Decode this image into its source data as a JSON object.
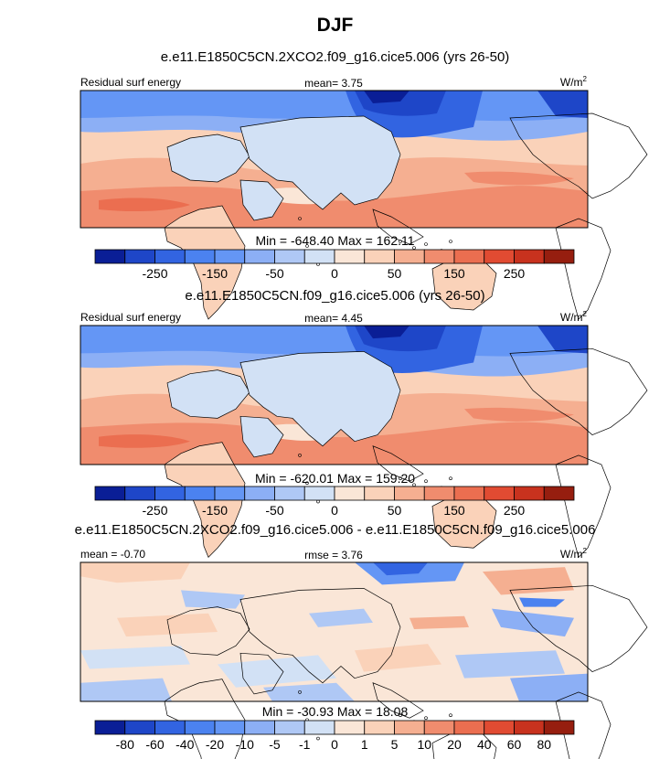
{
  "title": "DJF",
  "panels": [
    {
      "subtitle": "e.e11.E1850C5CN.2XCO2.f09_g16.cice5.006 (yrs 26-50)",
      "left_label": "Residual surf energy",
      "center_label": "mean=  3.75",
      "units": "W/m",
      "units_sup": "2",
      "minmax": "Min = -648.40 Max = 162.11"
    },
    {
      "subtitle": "e.e11.E1850C5CN.f09_g16.cice5.006 (yrs 26-50)",
      "left_label": "Residual surf energy",
      "center_label": "mean=  4.45",
      "units": "W/m",
      "units_sup": "2",
      "minmax": "Min = -620.01 Max = 159.20"
    },
    {
      "subtitle": "e.e11.E1850C5CN.2XCO2.f09_g16.cice5.006 - e.e11.E1850C5CN.f09_g16.cice5.006",
      "left_label": "mean = -0.70",
      "center_label": "rmse =  3.76",
      "units": "W/m",
      "units_sup": "2",
      "minmax": "Min = -30.93 Max = 18.08"
    }
  ],
  "chart_data": [
    {
      "type": "heatmap",
      "title": "DJF",
      "subtitle": "e.e11.E1850C5CN.2XCO2.f09_g16.cice5.006 (yrs 26-50)",
      "variable": "Residual surf energy",
      "units": "W/m2",
      "mean": 3.75,
      "min": -648.4,
      "max": 162.11,
      "colorbar": {
        "levels": [
          -350,
          -300,
          -250,
          -200,
          -150,
          -100,
          -50,
          -25,
          0,
          25,
          50,
          100,
          150,
          200,
          250,
          300,
          350
        ],
        "tick_labels": [
          "-250",
          "-150",
          "-50",
          "0",
          "50",
          "150",
          "250"
        ],
        "colors": [
          "#0a1e96",
          "#1e46c8",
          "#3264e1",
          "#4b82f0",
          "#6496f5",
          "#8caff5",
          "#afc8f5",
          "#d2e1f5",
          "#fae6d7",
          "#fad2b9",
          "#f5af91",
          "#f08c6e",
          "#eb6e50",
          "#e14b32",
          "#c8321e",
          "#961e0f"
        ]
      }
    },
    {
      "type": "heatmap",
      "subtitle": "e.e11.E1850C5CN.f09_g16.cice5.006 (yrs 26-50)",
      "variable": "Residual surf energy",
      "units": "W/m2",
      "mean": 4.45,
      "min": -620.01,
      "max": 159.2,
      "colorbar": {
        "levels": [
          -350,
          -300,
          -250,
          -200,
          -150,
          -100,
          -50,
          -25,
          0,
          25,
          50,
          100,
          150,
          200,
          250,
          300,
          350
        ],
        "tick_labels": [
          "-250",
          "-150",
          "-50",
          "0",
          "50",
          "150",
          "250"
        ],
        "colors": [
          "#0a1e96",
          "#1e46c8",
          "#3264e1",
          "#4b82f0",
          "#6496f5",
          "#8caff5",
          "#afc8f5",
          "#d2e1f5",
          "#fae6d7",
          "#fad2b9",
          "#f5af91",
          "#f08c6e",
          "#eb6e50",
          "#e14b32",
          "#c8321e",
          "#961e0f"
        ]
      }
    },
    {
      "type": "heatmap",
      "subtitle": "e.e11.E1850C5CN.2XCO2.f09_g16.cice5.006 - e.e11.E1850C5CN.f09_g16.cice5.006",
      "units": "W/m2",
      "mean": -0.7,
      "rmse": 3.76,
      "min": -30.93,
      "max": 18.08,
      "colorbar": {
        "tick_labels": [
          "-80",
          "-60",
          "-40",
          "-20",
          "-10",
          "-5",
          "-1",
          "0",
          "1",
          "5",
          "10",
          "20",
          "40",
          "60",
          "80"
        ],
        "colors": [
          "#0a1e96",
          "#1e46c8",
          "#3264e1",
          "#4b82f0",
          "#6496f5",
          "#8caff5",
          "#afc8f5",
          "#d2e1f5",
          "#fae6d7",
          "#fad2b9",
          "#f5af91",
          "#f08c6e",
          "#eb6e50",
          "#e14b32",
          "#c8321e",
          "#961e0f"
        ]
      }
    }
  ]
}
